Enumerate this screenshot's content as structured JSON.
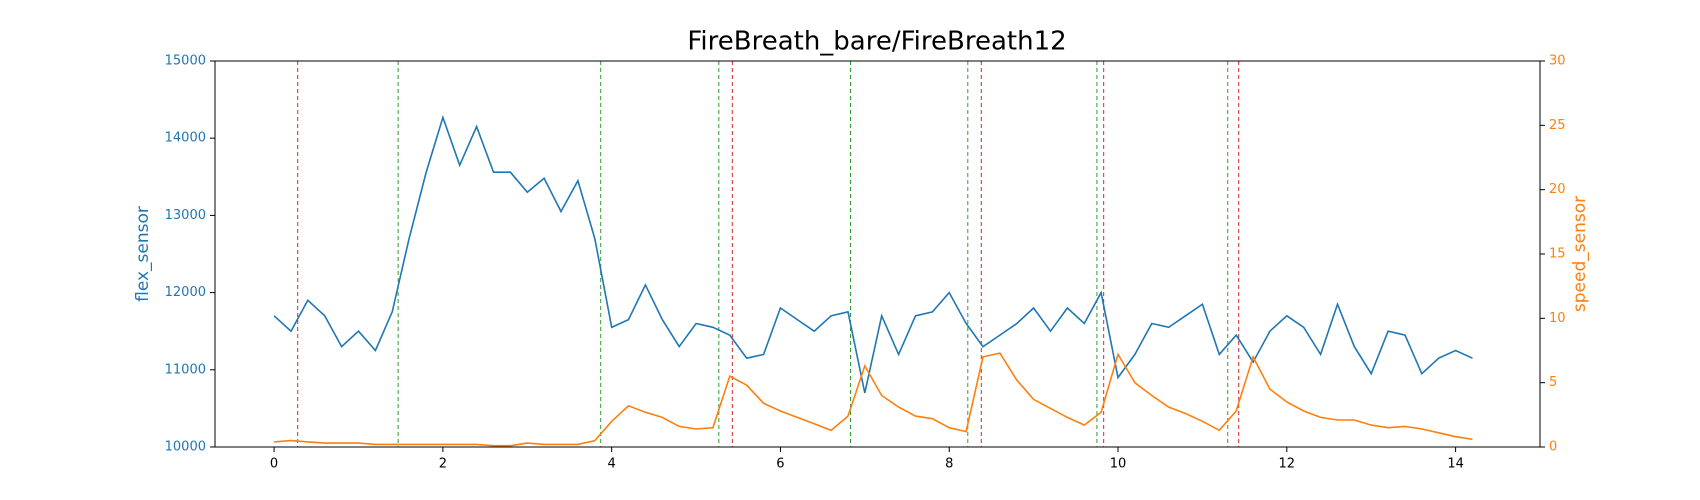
{
  "chart_data": {
    "type": "line",
    "title": "FireBreath_bare/FireBreath12",
    "y_label": "flex_sensor",
    "y2_label": "speed_sensor",
    "x": [
      0,
      0.2,
      0.4,
      0.6,
      0.8,
      1.0,
      1.2,
      1.4,
      1.6,
      1.8,
      2.0,
      2.2,
      2.4,
      2.6,
      2.8,
      3.0,
      3.2,
      3.4,
      3.6,
      3.8,
      4.0,
      4.2,
      4.4,
      4.6,
      4.8,
      5.0,
      5.2,
      5.4,
      5.6,
      5.8,
      6.0,
      6.2,
      6.4,
      6.6,
      6.8,
      7.0,
      7.2,
      7.4,
      7.6,
      7.8,
      8.0,
      8.2,
      8.4,
      8.6,
      8.8,
      9.0,
      9.2,
      9.4,
      9.6,
      9.8,
      10.0,
      10.2,
      10.4,
      10.6,
      10.8,
      11.0,
      11.2,
      11.4,
      11.6,
      11.8,
      12.0,
      12.2,
      12.4,
      12.6,
      12.8,
      13.0,
      13.2,
      13.4,
      13.6,
      13.8,
      14.0,
      14.2
    ],
    "series": [
      {
        "name": "flex_sensor",
        "color": "#1f77b4",
        "axis": "y",
        "values": [
          11700,
          11500,
          11900,
          11700,
          11300,
          11500,
          11250,
          11750,
          12700,
          13550,
          14270,
          13650,
          14150,
          13560,
          13560,
          13300,
          13480,
          13050,
          13450,
          12700,
          11550,
          11650,
          12100,
          11650,
          11300,
          11600,
          11550,
          11450,
          11150,
          11200,
          11800,
          11650,
          11500,
          11700,
          11750,
          10700,
          11700,
          11200,
          11700,
          11750,
          12000,
          11600,
          11300,
          11450,
          11600,
          11800,
          11500,
          11800,
          11600,
          12000,
          10900,
          11200,
          11600,
          11550,
          11700,
          11850,
          11200,
          11450,
          11100,
          11500,
          11700,
          11550,
          11200,
          11850,
          11300,
          10950,
          11500,
          11450,
          10950,
          11150,
          11250,
          11150
        ]
      },
      {
        "name": "speed_sensor",
        "color": "#ff7f0e",
        "axis": "y2",
        "values": [
          0.4,
          0.5,
          0.4,
          0.3,
          0.3,
          0.3,
          0.2,
          0.2,
          0.2,
          0.2,
          0.2,
          0.2,
          0.2,
          0.1,
          0.1,
          0.3,
          0.2,
          0.2,
          0.2,
          0.5,
          2.0,
          3.2,
          2.7,
          2.3,
          1.6,
          1.4,
          1.5,
          5.5,
          4.8,
          3.4,
          2.8,
          2.3,
          1.8,
          1.3,
          2.4,
          6.3,
          4.0,
          3.1,
          2.4,
          2.2,
          1.5,
          1.2,
          7.0,
          7.3,
          5.2,
          3.7,
          3.0,
          2.3,
          1.7,
          2.7,
          7.2,
          5.0,
          4.0,
          3.1,
          2.6,
          2.0,
          1.3,
          2.8,
          7.0,
          4.5,
          3.5,
          2.8,
          2.3,
          2.1,
          2.1,
          1.7,
          1.5,
          1.6,
          1.4,
          1.1,
          0.8,
          0.6
        ]
      }
    ],
    "vlines": [
      {
        "x": 0.28,
        "color": "#d62728"
      },
      {
        "x": 1.47,
        "color": "#2ca02c"
      },
      {
        "x": 3.87,
        "color": "#2ca02c"
      },
      {
        "x": 5.27,
        "color": "#2ca02c"
      },
      {
        "x": 5.43,
        "color": "#d62728"
      },
      {
        "x": 6.83,
        "color": "#2ca02c"
      },
      {
        "x": 8.22,
        "color": "#2ca02c"
      },
      {
        "x": 8.38,
        "color": "#d62728"
      },
      {
        "x": 9.75,
        "color": "#2ca02c"
      },
      {
        "x": 9.83,
        "color": "#d62728"
      },
      {
        "x": 11.3,
        "color": "#2ca02c"
      },
      {
        "x": 11.43,
        "color": "#d62728"
      }
    ],
    "xlim": [
      -0.7,
      15.0
    ],
    "xticks": [
      0,
      2,
      4,
      6,
      8,
      10,
      12,
      14
    ],
    "ylim": [
      10000,
      15000
    ],
    "yticks": [
      10000,
      11000,
      12000,
      13000,
      14000,
      15000
    ],
    "y2lim": [
      0,
      30
    ],
    "y2ticks": [
      0,
      5,
      10,
      15,
      20,
      25,
      30
    ]
  }
}
